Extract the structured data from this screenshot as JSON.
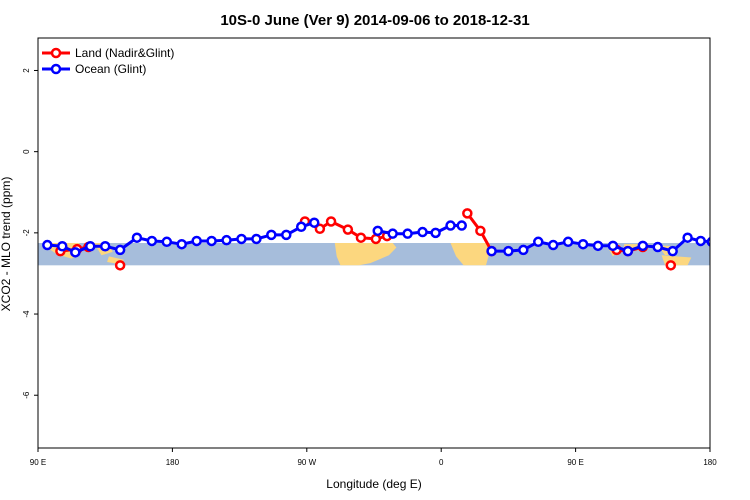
{
  "chart_data": {
    "type": "line",
    "title": "10S-0 June (Ver 9)   2014-09-06 to 2018-12-31",
    "xlabel": "Longitude (deg E)",
    "ylabel": "XCO2 - MLO trend (ppm)",
    "xlim": [
      90,
      450
    ],
    "ylim": [
      -7.3,
      2.8
    ],
    "x_ticks": [
      {
        "value": 90,
        "label": "90 E"
      },
      {
        "value": 162,
        "label": "180"
      },
      {
        "value": 234,
        "label": "90 W"
      },
      {
        "value": 306,
        "label": "0"
      },
      {
        "value": 378,
        "label": "90 E"
      },
      {
        "value": 450,
        "label": "180"
      }
    ],
    "y_ticks": [
      {
        "value": 2,
        "label": "2"
      },
      {
        "value": 0,
        "label": "0"
      },
      {
        "value": -2,
        "label": "-2"
      },
      {
        "value": -4,
        "label": "-4"
      },
      {
        "value": -6,
        "label": "-6"
      }
    ],
    "map_band": {
      "lat_range": [
        -10,
        0
      ],
      "y_range": [
        -2.8,
        -2.25
      ],
      "ocean_color": "#a6bddb",
      "land_color": "#fcd77f"
    },
    "legend_position": "top-left",
    "grid": false,
    "series": [
      {
        "name": "Land (Nadir&Glint)",
        "color": "#ff0000",
        "segments": [
          [
            [
              102,
              -2.45
            ],
            [
              111,
              -2.4
            ],
            [
              117,
              -2.35
            ]
          ],
          [
            [
              134,
              -2.8
            ]
          ],
          [
            [
              233,
              -1.72
            ],
            [
              241,
              -1.9
            ],
            [
              247,
              -1.72
            ],
            [
              256,
              -1.92
            ],
            [
              263,
              -2.12
            ],
            [
              271,
              -2.15
            ],
            [
              277,
              -2.08
            ]
          ],
          [
            [
              320,
              -1.52
            ],
            [
              327,
              -1.95
            ],
            [
              333,
              -2.45
            ]
          ],
          [
            [
              400,
              -2.42
            ],
            [
              406,
              -2.45
            ],
            [
              414,
              -2.35
            ]
          ],
          [
            [
              429,
              -2.8
            ]
          ]
        ]
      },
      {
        "name": "Ocean (Glint)",
        "color": "#0000ff",
        "segments": [
          [
            [
              95,
              -2.3
            ],
            [
              103,
              -2.33
            ],
            [
              110,
              -2.48
            ],
            [
              118,
              -2.33
            ],
            [
              126,
              -2.33
            ],
            [
              134,
              -2.42
            ],
            [
              143,
              -2.12
            ],
            [
              151,
              -2.2
            ],
            [
              159,
              -2.22
            ],
            [
              167,
              -2.28
            ],
            [
              175,
              -2.2
            ],
            [
              183,
              -2.2
            ],
            [
              191,
              -2.18
            ],
            [
              199,
              -2.15
            ],
            [
              207,
              -2.15
            ],
            [
              215,
              -2.05
            ],
            [
              223,
              -2.05
            ],
            [
              231,
              -1.85
            ],
            [
              238,
              -1.75
            ]
          ],
          [
            [
              272,
              -1.95
            ],
            [
              280,
              -2.02
            ],
            [
              288,
              -2.02
            ],
            [
              296,
              -1.98
            ],
            [
              303,
              -2.0
            ],
            [
              311,
              -1.82
            ],
            [
              317,
              -1.82
            ]
          ],
          [
            [
              333,
              -2.45
            ],
            [
              342,
              -2.45
            ],
            [
              350,
              -2.42
            ],
            [
              358,
              -2.22
            ],
            [
              366,
              -2.3
            ],
            [
              374,
              -2.22
            ],
            [
              382,
              -2.28
            ],
            [
              390,
              -2.32
            ],
            [
              398,
              -2.32
            ],
            [
              406,
              -2.45
            ],
            [
              414,
              -2.32
            ],
            [
              422,
              -2.35
            ],
            [
              430,
              -2.45
            ],
            [
              438,
              -2.12
            ],
            [
              445,
              -2.2
            ],
            [
              451,
              -2.22
            ]
          ]
        ]
      }
    ]
  }
}
